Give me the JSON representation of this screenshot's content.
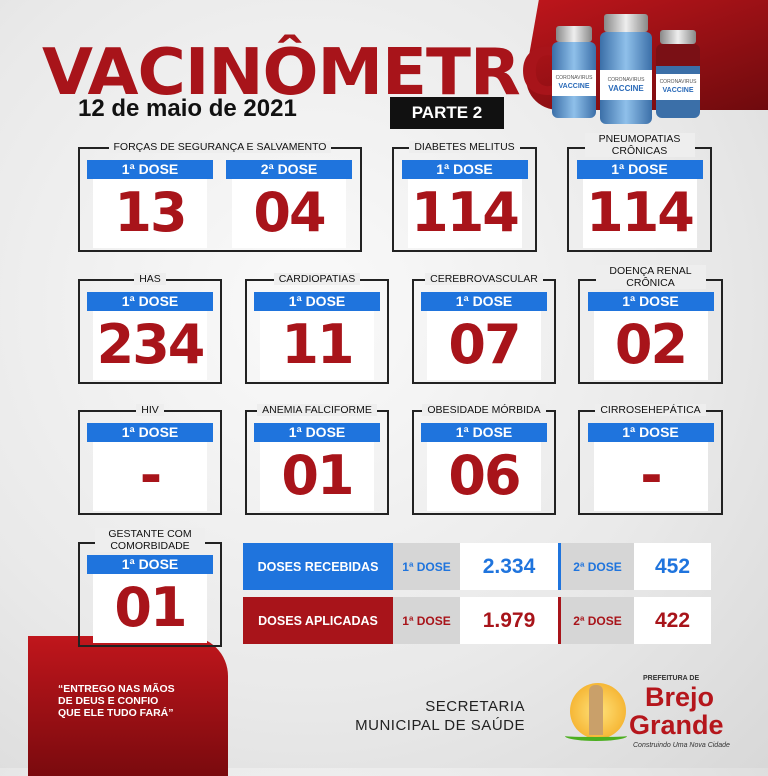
{
  "header": {
    "title": "VACINÔMETRO",
    "date": "12 de maio de 2021",
    "part": "PARTE 2",
    "vial_label": "VACCINE",
    "vial_sublabel": "CORONAVIRUS"
  },
  "groups": [
    {
      "label": "FORÇAS DE SEGURANÇA E SALVAMENTO",
      "doses": [
        {
          "label": "1ª DOSE",
          "value": "13"
        },
        {
          "label": "2ª DOSE",
          "value": "04"
        }
      ]
    },
    {
      "label": "DIABETES MELITUS",
      "doses": [
        {
          "label": "1ª DOSE",
          "value": "114"
        }
      ]
    },
    {
      "label": "PNEUMOPATIAS CRÔNICAS",
      "doses": [
        {
          "label": "1ª DOSE",
          "value": "114"
        }
      ]
    },
    {
      "label": "HAS",
      "doses": [
        {
          "label": "1ª DOSE",
          "value": "234"
        }
      ]
    },
    {
      "label": "CARDIOPATIAS",
      "doses": [
        {
          "label": "1ª DOSE",
          "value": "11"
        }
      ]
    },
    {
      "label": "CEREBROVASCULAR",
      "doses": [
        {
          "label": "1ª DOSE",
          "value": "07"
        }
      ]
    },
    {
      "label": "DOENÇA RENAL CRÔNICA",
      "doses": [
        {
          "label": "1ª DOSE",
          "value": "02"
        }
      ]
    },
    {
      "label": "HIV",
      "doses": [
        {
          "label": "1ª DOSE",
          "value": "-"
        }
      ]
    },
    {
      "label": "ANEMIA FALCIFORME",
      "doses": [
        {
          "label": "1ª DOSE",
          "value": "01"
        }
      ]
    },
    {
      "label": "OBESIDADE MÓRBIDA",
      "doses": [
        {
          "label": "1ª DOSE",
          "value": "06"
        }
      ]
    },
    {
      "label": "CIRROSEHEPÁTICA",
      "doses": [
        {
          "label": "1ª DOSE",
          "value": "-"
        }
      ]
    },
    {
      "label": "GESTANTE COM COMORBIDADE",
      "doses": [
        {
          "label": "1ª DOSE",
          "value": "01"
        }
      ]
    }
  ],
  "summary": [
    {
      "label": "DOSES RECEBIDAS",
      "dose1_label": "1ª DOSE",
      "dose1": "2.334",
      "dose2_label": "2ª DOSE",
      "dose2": "452",
      "color": "#1f74dd"
    },
    {
      "label": "DOSES APLICADAS",
      "dose1_label": "1ª DOSE",
      "dose1": "1.979",
      "dose2_label": "2ª DOSE",
      "dose2": "422",
      "color": "#a8141a"
    }
  ],
  "footer": {
    "quote": [
      "“ENTREGO NAS MÃOS",
      "DE DEUS E CONFIO",
      "QUE ELE TUDO FARÁ”"
    ],
    "secretaria": [
      "SECRETARIA",
      "MUNICIPAL DE SAÚDE"
    ],
    "logo": {
      "prefix": "PREFEITURA DE",
      "name1": "Brejo",
      "name2": "Grande",
      "slogan": "Construindo Uma Nova Cidade"
    }
  }
}
